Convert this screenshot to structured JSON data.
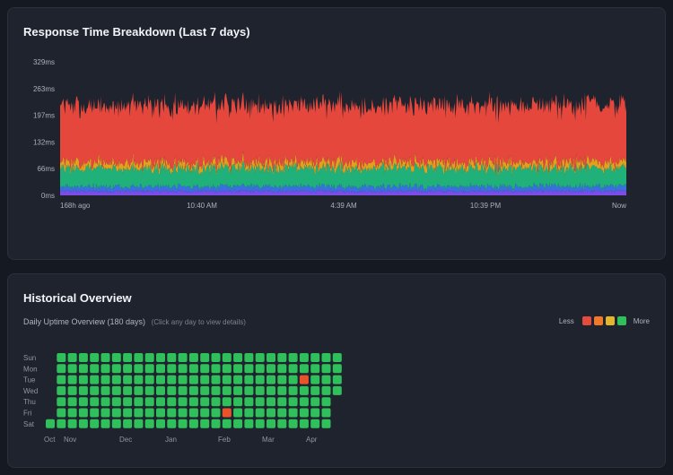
{
  "response_card": {
    "title": "Response Time Breakdown (Last 7 days)"
  },
  "history_card": {
    "title": "Historical Overview",
    "subtitle": "Daily Uptime Overview (180 days)",
    "hint": "(Click any day to view details)",
    "legend": {
      "less": "Less",
      "more": "More",
      "colors": [
        "#e44b3c",
        "#f07a2a",
        "#e6b62a",
        "#2fbf5b"
      ]
    },
    "day_labels": [
      "Sun",
      "Mon",
      "Tue",
      "Wed",
      "Thu",
      "Fri",
      "Sat"
    ],
    "month_labels": [
      "Oct",
      "Nov",
      "Dec",
      "Jan",
      "Feb",
      "Mar",
      "Apr"
    ],
    "days": 180,
    "status_colors": {
      "up": "#2fbf5b",
      "down": "#e8532c"
    },
    "incidents": [
      {
        "week": 23,
        "day": "Tue"
      },
      {
        "week": 16,
        "day": "Fri"
      }
    ]
  },
  "chart_data": {
    "type": "area",
    "stacked": true,
    "title": "Response Time Breakdown (Last 7 days)",
    "x_ticks": [
      "168h ago",
      "10:40 AM",
      "4:39 AM",
      "10:39 PM",
      "Now"
    ],
    "y_ticks": [
      "0ms",
      "66ms",
      "132ms",
      "197ms",
      "263ms",
      "329ms"
    ],
    "ylim": [
      0,
      329
    ],
    "points": 700,
    "series": [
      {
        "color": "#7b4ce6",
        "mean": 10,
        "spread": 4
      },
      {
        "color": "#3a6fe0",
        "mean": 12,
        "spread": 6
      },
      {
        "color": "#20b07a",
        "mean": 45,
        "spread": 12
      },
      {
        "color": "#e0a020",
        "mean": 14,
        "spread": 10
      },
      {
        "color": "#e5473c",
        "mean": 140,
        "spread": 18
      }
    ],
    "grid": false,
    "legend": "none"
  }
}
